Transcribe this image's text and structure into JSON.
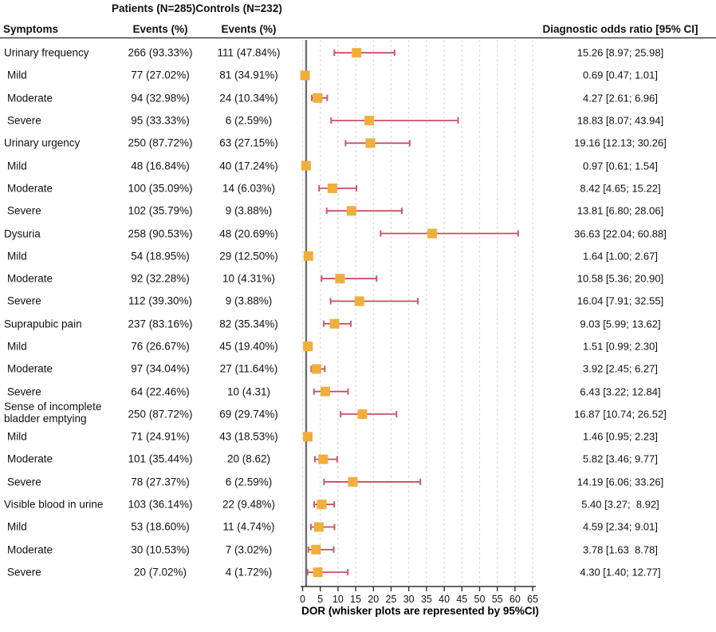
{
  "header": {
    "patients_group": "Patients (N=285)",
    "controls_group": "Controls (N=232)",
    "symptoms": "Symptoms",
    "events_patients": "Events (%)",
    "events_controls": "Events (%)",
    "dor": "Diagnostic odds ratio [95% CI]"
  },
  "chart_data": {
    "type": "scatter",
    "subtype": "forest-plot",
    "title": "",
    "xlabel": "DOR (whisker plots are represented by 95%CI)",
    "ylabel": "",
    "xlim": [
      0,
      66
    ],
    "xticks": [
      0,
      5,
      10,
      15,
      20,
      25,
      30,
      35,
      40,
      45,
      50,
      55,
      60,
      65
    ],
    "reference_line_x": 1,
    "grid": "vertical-dashed",
    "legend": "none",
    "colors": {
      "marker": "#F1AE3B",
      "whisker": "#C5435A",
      "cap": "#CE5A6E",
      "reference_line": "#6E6E6E",
      "gridline": "#DCDCDC",
      "axis": "#333333"
    },
    "rows": [
      {
        "label": "Urinary frequency",
        "sub": false,
        "patients": "266 (93.33%)",
        "controls": "111 (47.84%)",
        "dor_text": "15.26 [8.97; 25.98]",
        "dor": 15.26,
        "lo": 8.97,
        "hi": 25.98
      },
      {
        "label": "Mild",
        "sub": true,
        "patients": "77 (27.02%)",
        "controls": "81 (34.91%)",
        "dor_text": "0.69 [0.47; 1.01]",
        "dor": 0.69,
        "lo": 0.47,
        "hi": 1.01
      },
      {
        "label": "Moderate",
        "sub": true,
        "patients": "94 (32.98%)",
        "controls": "24 (10.34%)",
        "dor_text": "4.27 [2.61; 6.96]",
        "dor": 4.27,
        "lo": 2.61,
        "hi": 6.96
      },
      {
        "label": "Severe",
        "sub": true,
        "patients": "95 (33.33%)",
        "controls": "6 (2.59%)",
        "dor_text": "18.83 [8.07; 43.94]",
        "dor": 18.83,
        "lo": 8.07,
        "hi": 43.94
      },
      {
        "label": "Urinary urgency",
        "sub": false,
        "patients": "250 (87.72%)",
        "controls": "63 (27.15%)",
        "dor_text": "19.16 [12.13; 30.26]",
        "dor": 19.16,
        "lo": 12.13,
        "hi": 30.26
      },
      {
        "label": "Mild",
        "sub": true,
        "patients": "48 (16.84%)",
        "controls": "40 (17.24%)",
        "dor_text": "0.97 [0.61; 1.54]",
        "dor": 0.97,
        "lo": 0.61,
        "hi": 1.54
      },
      {
        "label": "Moderate",
        "sub": true,
        "patients": "100 (35.09%)",
        "controls": "14 (6.03%)",
        "dor_text": "8.42 [4.65; 15.22]",
        "dor": 8.42,
        "lo": 4.65,
        "hi": 15.22
      },
      {
        "label": "Severe",
        "sub": true,
        "patients": "102 (35.79%)",
        "controls": "9 (3.88%)",
        "dor_text": "13.81 [6.80; 28.06]",
        "dor": 13.81,
        "lo": 6.8,
        "hi": 28.06
      },
      {
        "label": "Dysuria",
        "sub": false,
        "patients": "258 (90.53%)",
        "controls": "48 (20.69%)",
        "dor_text": "36.63 [22.04; 60.88]",
        "dor": 36.63,
        "lo": 22.04,
        "hi": 60.88
      },
      {
        "label": "Mild",
        "sub": true,
        "patients": "54 (18.95%)",
        "controls": "29 (12.50%)",
        "dor_text": "1.64 [1.00; 2.67]",
        "dor": 1.64,
        "lo": 1.0,
        "hi": 2.67
      },
      {
        "label": "Moderate",
        "sub": true,
        "patients": "92 (32.28%)",
        "controls": "10 (4.31%)",
        "dor_text": "10.58 [5.36; 20.90]",
        "dor": 10.58,
        "lo": 5.36,
        "hi": 20.9
      },
      {
        "label": "Severe",
        "sub": true,
        "patients": "112 (39.30%)",
        "controls": "9 (3.88%)",
        "dor_text": "16.04 [7.91; 32.55]",
        "dor": 16.04,
        "lo": 7.91,
        "hi": 32.55
      },
      {
        "label": "Suprapubic pain",
        "sub": false,
        "patients": "237 (83.16%)",
        "controls": "82 (35.34%)",
        "dor_text": "9.03 [5.99; 13.62]",
        "dor": 9.03,
        "lo": 5.99,
        "hi": 13.62
      },
      {
        "label": "Mild",
        "sub": true,
        "patients": "76 (26.67%)",
        "controls": "45 (19.40%)",
        "dor_text": "1.51 [0.99; 2.30]",
        "dor": 1.51,
        "lo": 0.99,
        "hi": 2.3
      },
      {
        "label": "Moderate",
        "sub": true,
        "patients": "97 (34.04%)",
        "controls": "27 (11.64%)",
        "dor_text": "3.92 [2.45; 6.27]",
        "dor": 3.92,
        "lo": 2.45,
        "hi": 6.27
      },
      {
        "label": "Severe",
        "sub": true,
        "patients": "64 (22.46%)",
        "controls": "10 (4.31)",
        "dor_text": "6.43 [3.22; 12.84]",
        "dor": 6.43,
        "lo": 3.22,
        "hi": 12.84
      },
      {
        "label": "Sense of incomplete bladder emptying",
        "sub": false,
        "wrap": true,
        "patients": "250 (87.72%)",
        "controls": "69 (29.74%)",
        "dor_text": "16.87 [10.74; 26.52]",
        "dor": 16.87,
        "lo": 10.74,
        "hi": 26.52
      },
      {
        "label": "Mild",
        "sub": true,
        "patients": "71 (24.91%)",
        "controls": "43 (18.53%)",
        "dor_text": "1.46 [0.95; 2.23]",
        "dor": 1.46,
        "lo": 0.95,
        "hi": 2.23
      },
      {
        "label": "Moderate",
        "sub": true,
        "patients": "101 (35.44%)",
        "controls": "20 (8.62)",
        "dor_text": "5.82 [3.46; 9.77]",
        "dor": 5.82,
        "lo": 3.46,
        "hi": 9.77
      },
      {
        "label": "Severe",
        "sub": true,
        "patients": "78 (27.37%)",
        "controls": "6 (2.59%)",
        "dor_text": "14.19 [6.06; 33.26]",
        "dor": 14.19,
        "lo": 6.06,
        "hi": 33.26
      },
      {
        "label": "Visible blood in urine",
        "sub": false,
        "patients": "103 (36.14%)",
        "controls": "22 (9.48%)",
        "dor_text": "5.40 [3.27;  8.92]",
        "dor": 5.4,
        "lo": 3.27,
        "hi": 8.92
      },
      {
        "label": "Mild",
        "sub": true,
        "patients": "53 (18.60%)",
        "controls": "11 (4.74%)",
        "dor_text": "4.59 [2.34; 9.01]",
        "dor": 4.59,
        "lo": 2.34,
        "hi": 9.01
      },
      {
        "label": "Moderate",
        "sub": true,
        "patients": "30 (10.53%)",
        "controls": "7 (3.02%)",
        "dor_text": "3.78 [1.63  8.78]",
        "dor": 3.78,
        "lo": 1.63,
        "hi": 8.78
      },
      {
        "label": "Severe",
        "sub": true,
        "patients": "20 (7.02%)",
        "controls": "4 (1.72%)",
        "dor_text": "4.30 [1.40; 12.77]",
        "dor": 4.3,
        "lo": 1.4,
        "hi": 12.77
      }
    ]
  }
}
